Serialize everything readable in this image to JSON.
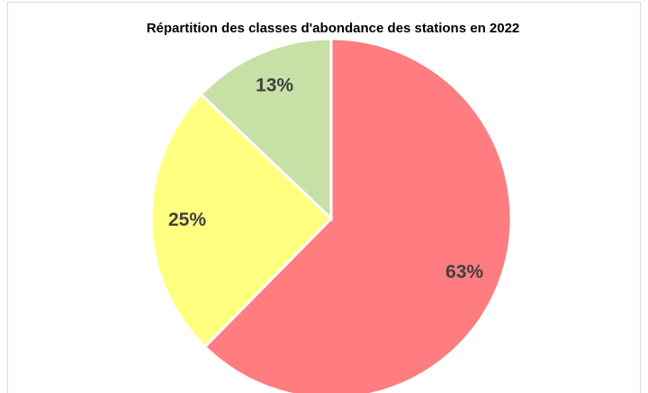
{
  "chart_data": {
    "type": "pie",
    "title": "Répartition des classes d'abondance des stations en 2022",
    "values": [
      63,
      25,
      13
    ],
    "value_labels": [
      "63%",
      "25%",
      "13%"
    ],
    "colors": [
      "#ff7c80",
      "#ffff80",
      "#c6e0a6"
    ]
  }
}
